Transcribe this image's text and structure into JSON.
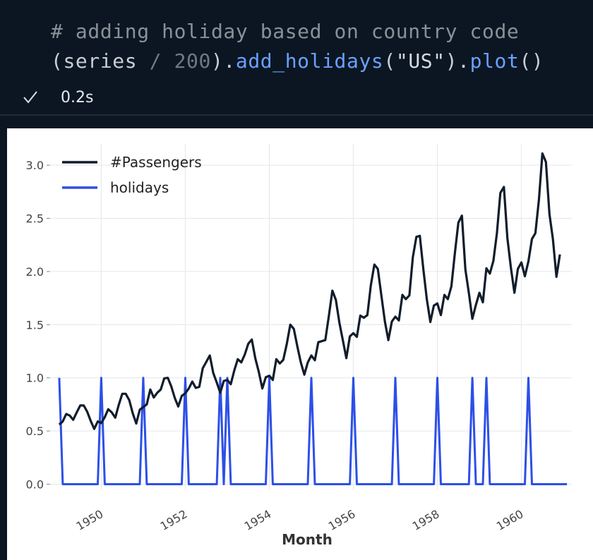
{
  "code": {
    "comment": "# adding holiday based on country code",
    "line2_open": "(series ",
    "line2_div": "/ 200",
    "line2_close": ").",
    "line2_fn1": "add_holidays",
    "line2_arg_open": "(",
    "line2_str": "\"US\"",
    "line2_arg_close": ").",
    "line2_fn2": "plot",
    "line2_end": "()"
  },
  "execution": {
    "status_icon": "check-icon",
    "duration": "0.2s"
  },
  "chart_data": {
    "type": "line",
    "title": "",
    "xlabel": "Month",
    "ylabel": "",
    "xlim": [
      1948.8,
      1961.2
    ],
    "ylim": [
      -0.05,
      3.2
    ],
    "yticks": [
      0.0,
      0.5,
      1.0,
      1.5,
      2.0,
      2.5,
      3.0
    ],
    "ytick_labels": [
      "0.0",
      "0.5",
      "1.0",
      "1.5",
      "2.0",
      "2.5",
      "3.0"
    ],
    "xticks": [
      1950,
      1952,
      1954,
      1956,
      1958,
      1960
    ],
    "xtick_labels": [
      "1950",
      "1952",
      "1954",
      "1956",
      "1958",
      "1960"
    ],
    "grid": true,
    "legend_position": "top-left",
    "series": [
      {
        "name": "#Passengers",
        "color": "#111d2b",
        "x_start": 1949,
        "x_step": 0.0833333,
        "values": [
          0.56,
          0.59,
          0.66,
          0.645,
          0.605,
          0.675,
          0.74,
          0.74,
          0.68,
          0.595,
          0.52,
          0.59,
          0.575,
          0.63,
          0.705,
          0.675,
          0.625,
          0.745,
          0.85,
          0.85,
          0.79,
          0.665,
          0.57,
          0.7,
          0.725,
          0.75,
          0.89,
          0.815,
          0.86,
          0.89,
          0.995,
          1.0,
          0.92,
          0.81,
          0.73,
          0.83,
          0.855,
          0.9,
          0.965,
          0.905,
          0.915,
          1.09,
          1.15,
          1.21,
          1.045,
          0.955,
          0.86,
          0.97,
          0.98,
          0.94,
          1.07,
          1.175,
          1.145,
          1.22,
          1.32,
          1.36,
          1.185,
          1.055,
          0.9,
          1.005,
          1.02,
          0.98,
          1.175,
          1.135,
          1.17,
          1.32,
          1.5,
          1.46,
          1.295,
          1.145,
          1.03,
          1.145,
          1.21,
          1.165,
          1.335,
          1.345,
          1.355,
          1.58,
          1.82,
          1.735,
          1.52,
          1.355,
          1.185,
          1.39,
          1.42,
          1.385,
          1.585,
          1.565,
          1.59,
          1.87,
          2.065,
          2.025,
          1.775,
          1.53,
          1.355,
          1.53,
          1.575,
          1.54,
          1.78,
          1.74,
          1.775,
          2.135,
          2.325,
          2.335,
          2.02,
          1.735,
          1.525,
          1.68,
          1.7,
          1.59,
          1.78,
          1.74,
          1.86,
          2.17,
          2.46,
          2.525,
          2.02,
          1.795,
          1.555,
          1.685,
          1.8,
          1.71,
          2.03,
          1.98,
          2.1,
          2.36,
          2.74,
          2.795,
          2.315,
          2.035,
          1.8,
          2.025,
          2.085,
          1.955,
          2.095,
          2.305,
          2.36,
          2.675,
          3.11,
          3.03,
          2.54,
          2.305,
          1.95,
          2.16
        ]
      },
      {
        "name": "holidays",
        "color": "#2c4fe8",
        "x_start": 1949,
        "x_step": 0.0833333,
        "values": [
          1,
          0,
          0,
          0,
          0,
          0,
          0,
          0,
          0,
          0,
          0,
          0,
          1,
          0,
          0,
          0,
          0,
          0,
          0,
          0,
          0,
          0,
          0,
          0,
          1,
          0,
          0,
          0,
          0,
          0,
          0,
          0,
          0,
          0,
          0,
          0,
          1,
          0,
          0,
          0,
          0,
          0,
          0,
          0,
          0,
          0,
          1,
          0,
          1,
          0,
          0,
          0,
          0,
          0,
          0,
          0,
          0,
          0,
          0,
          0,
          1,
          0,
          0,
          0,
          0,
          0,
          0,
          0,
          0,
          0,
          0,
          0,
          1,
          0,
          0,
          0,
          0,
          0,
          0,
          0,
          0,
          0,
          0,
          0,
          1,
          0,
          0,
          0,
          0,
          0,
          0,
          0,
          0,
          0,
          0,
          0,
          1,
          0,
          0,
          0,
          0,
          0,
          0,
          0,
          0,
          0,
          0,
          0,
          1,
          0,
          0,
          0,
          0,
          0,
          0,
          0,
          0,
          0,
          1,
          0,
          0,
          0,
          1,
          0,
          0,
          0,
          0,
          0,
          0,
          0,
          0,
          0,
          0,
          0,
          1,
          0,
          0,
          0,
          0,
          0,
          0,
          0,
          0,
          0,
          0,
          0
        ]
      }
    ]
  }
}
